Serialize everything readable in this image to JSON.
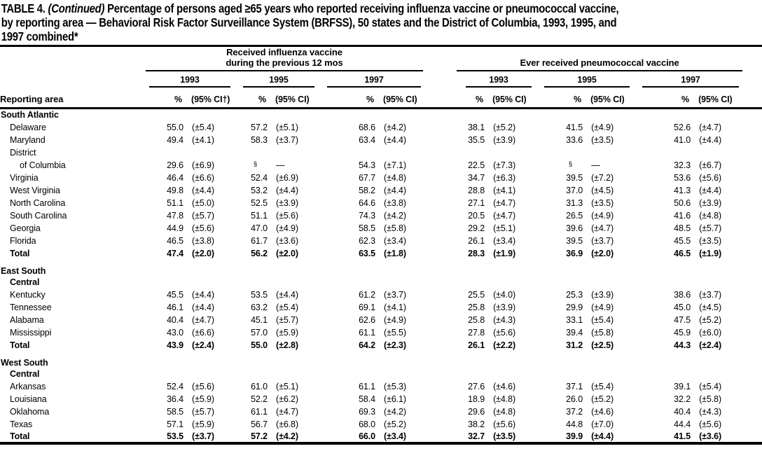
{
  "title": {
    "line1_prefix": "TABLE 4. ",
    "line1_continued": "(Continued)",
    "line1_rest": " Percentage of persons aged ≥65 years who reported receiving influenza vaccine or pneumococcal vaccine,",
    "line2": "by reporting area — Behavioral Risk Factor Surveillance System (BRFSS), 50 states and the District of Columbia, 1993, 1995, and",
    "line3": "1997 combined*"
  },
  "header": {
    "reporting_area": "Reporting area",
    "influenza_group": {
      "line1": "Received influenza vaccine",
      "line2": "during the previous 12 mos"
    },
    "pneumococcal_group": {
      "line1": "Ever received pneumococcal vaccine"
    },
    "years": [
      "1993",
      "1995",
      "1997",
      "1993",
      "1995",
      "1997"
    ],
    "col_headers": [
      "%",
      "(95% CI†)",
      "%",
      "(95% CI)",
      "%",
      "(95% CI)",
      "%",
      "(95% CI)",
      "%",
      "(95% CI)",
      "%",
      "(95% CI)"
    ]
  },
  "footnote_symbols": {
    "title_marker": "*",
    "ci_marker": "†",
    "missing_data_marker": "§",
    "missing_ci_dash": "—"
  },
  "colors": {
    "text": "#000000",
    "background": "#ffffff",
    "rule": "#000000"
  },
  "table": {
    "rows": [
      {
        "label": "South Atlantic",
        "indent": 0,
        "bold": true,
        "gap": false,
        "values": null
      },
      {
        "label": "Delaware",
        "indent": 1,
        "bold": false,
        "gap": false,
        "values": [
          "55.0",
          "(±5.4)",
          "57.2",
          "(±5.1)",
          "68.6",
          "(±4.2)",
          "38.1",
          "(±5.2)",
          "41.5",
          "(±4.9)",
          "52.6",
          "(±4.7)"
        ]
      },
      {
        "label": "Maryland",
        "indent": 1,
        "bold": false,
        "gap": false,
        "values": [
          "49.4",
          "(±4.1)",
          "58.3",
          "(±3.7)",
          "63.4",
          "(±4.4)",
          "35.5",
          "(±3.9)",
          "33.6",
          "(±3.5)",
          "41.0",
          "(±4.4)"
        ]
      },
      {
        "label": "District",
        "indent": 1,
        "bold": false,
        "gap": false,
        "values": null
      },
      {
        "label": "of Columbia",
        "indent": 2,
        "bold": false,
        "gap": false,
        "values": [
          "29.6",
          "(±6.9)",
          "§",
          "—",
          "54.3",
          "(±7.1)",
          "22.5",
          "(±7.3)",
          "§",
          "—",
          "32.3",
          "(±6.7)"
        ]
      },
      {
        "label": "Virginia",
        "indent": 1,
        "bold": false,
        "gap": false,
        "values": [
          "46.4",
          "(±6.6)",
          "52.4",
          "(±6.9)",
          "67.7",
          "(±4.8)",
          "34.7",
          "(±6.3)",
          "39.5",
          "(±7.2)",
          "53.6",
          "(±5.6)"
        ]
      },
      {
        "label": "West Virginia",
        "indent": 1,
        "bold": false,
        "gap": false,
        "values": [
          "49.8",
          "(±4.4)",
          "53.2",
          "(±4.4)",
          "58.2",
          "(±4.4)",
          "28.8",
          "(±4.1)",
          "37.0",
          "(±4.5)",
          "41.3",
          "(±4.4)"
        ]
      },
      {
        "label": "North Carolina",
        "indent": 1,
        "bold": false,
        "gap": false,
        "values": [
          "51.1",
          "(±5.0)",
          "52.5",
          "(±3.9)",
          "64.6",
          "(±3.8)",
          "27.1",
          "(±4.7)",
          "31.3",
          "(±3.5)",
          "50.6",
          "(±3.9)"
        ]
      },
      {
        "label": "South Carolina",
        "indent": 1,
        "bold": false,
        "gap": false,
        "values": [
          "47.8",
          "(±5.7)",
          "51.1",
          "(±5.6)",
          "74.3",
          "(±4.2)",
          "20.5",
          "(±4.7)",
          "26.5",
          "(±4.9)",
          "41.6",
          "(±4.8)"
        ]
      },
      {
        "label": "Georgia",
        "indent": 1,
        "bold": false,
        "gap": false,
        "values": [
          "44.9",
          "(±5.6)",
          "47.0",
          "(±4.9)",
          "58.5",
          "(±5.8)",
          "29.2",
          "(±5.1)",
          "39.6",
          "(±4.7)",
          "48.5",
          "(±5.7)"
        ]
      },
      {
        "label": "Florida",
        "indent": 1,
        "bold": false,
        "gap": false,
        "values": [
          "46.5",
          "(±3.8)",
          "61.7",
          "(±3.6)",
          "62.3",
          "(±3.4)",
          "26.1",
          "(±3.4)",
          "39.5",
          "(±3.7)",
          "45.5",
          "(±3.5)"
        ]
      },
      {
        "label": "Total",
        "indent": 1,
        "bold": true,
        "gap": false,
        "values": [
          "47.4",
          "(±2.0)",
          "56.2",
          "(±2.0)",
          "63.5",
          "(±1.8)",
          "28.3",
          "(±1.9)",
          "36.9",
          "(±2.0)",
          "46.5",
          "(±1.9)"
        ]
      },
      {
        "label": "East South",
        "indent": 0,
        "bold": true,
        "gap": true,
        "values": null
      },
      {
        "label": "Central",
        "indent": 1,
        "bold": true,
        "gap": false,
        "values": null
      },
      {
        "label": "Kentucky",
        "indent": 1,
        "bold": false,
        "gap": false,
        "values": [
          "45.5",
          "(±4.4)",
          "53.5",
          "(±4.4)",
          "61.2",
          "(±3.7)",
          "25.5",
          "(±4.0)",
          "25.3",
          "(±3.9)",
          "38.6",
          "(±3.7)"
        ]
      },
      {
        "label": "Tennessee",
        "indent": 1,
        "bold": false,
        "gap": false,
        "values": [
          "46.1",
          "(±4.4)",
          "63.2",
          "(±5.4)",
          "69.1",
          "(±4.1)",
          "25.8",
          "(±3.9)",
          "29.9",
          "(±4.9)",
          "45.0",
          "(±4.5)"
        ]
      },
      {
        "label": "Alabama",
        "indent": 1,
        "bold": false,
        "gap": false,
        "values": [
          "40.4",
          "(±4.7)",
          "45.1",
          "(±5.7)",
          "62.6",
          "(±4.9)",
          "25.8",
          "(±4.3)",
          "33.1",
          "(±5.4)",
          "47.5",
          "(±5.2)"
        ]
      },
      {
        "label": "Mississippi",
        "indent": 1,
        "bold": false,
        "gap": false,
        "values": [
          "43.0",
          "(±6.6)",
          "57.0",
          "(±5.9)",
          "61.1",
          "(±5.5)",
          "27.8",
          "(±5.6)",
          "39.4",
          "(±5.8)",
          "45.9",
          "(±6.0)"
        ]
      },
      {
        "label": "Total",
        "indent": 1,
        "bold": true,
        "gap": false,
        "values": [
          "43.9",
          "(±2.4)",
          "55.0",
          "(±2.8)",
          "64.2",
          "(±2.3)",
          "26.1",
          "(±2.2)",
          "31.2",
          "(±2.5)",
          "44.3",
          "(±2.4)"
        ]
      },
      {
        "label": "West South",
        "indent": 0,
        "bold": true,
        "gap": true,
        "values": null
      },
      {
        "label": "Central",
        "indent": 1,
        "bold": true,
        "gap": false,
        "values": null
      },
      {
        "label": "Arkansas",
        "indent": 1,
        "bold": false,
        "gap": false,
        "values": [
          "52.4",
          "(±5.6)",
          "61.0",
          "(±5.1)",
          "61.1",
          "(±5.3)",
          "27.6",
          "(±4.6)",
          "37.1",
          "(±5.4)",
          "39.1",
          "(±5.4)"
        ]
      },
      {
        "label": "Louisiana",
        "indent": 1,
        "bold": false,
        "gap": false,
        "values": [
          "36.4",
          "(±5.9)",
          "52.2",
          "(±6.2)",
          "58.4",
          "(±6.1)",
          "18.9",
          "(±4.8)",
          "26.0",
          "(±5.2)",
          "32.2",
          "(±5.8)"
        ]
      },
      {
        "label": "Oklahoma",
        "indent": 1,
        "bold": false,
        "gap": false,
        "values": [
          "58.5",
          "(±5.7)",
          "61.1",
          "(±4.7)",
          "69.3",
          "(±4.2)",
          "29.6",
          "(±4.8)",
          "37.2",
          "(±4.6)",
          "40.4",
          "(±4.3)"
        ]
      },
      {
        "label": "Texas",
        "indent": 1,
        "bold": false,
        "gap": false,
        "values": [
          "57.1",
          "(±5.9)",
          "56.7",
          "(±6.8)",
          "68.0",
          "(±5.2)",
          "38.2",
          "(±5.6)",
          "44.8",
          "(±7.0)",
          "44.4",
          "(±5.6)"
        ]
      },
      {
        "label": "Total",
        "indent": 1,
        "bold": true,
        "gap": false,
        "values": [
          "53.5",
          "(±3.7)",
          "57.2",
          "(±4.2)",
          "66.0",
          "(±3.4)",
          "32.7",
          "(±3.5)",
          "39.9",
          "(±4.4)",
          "41.5",
          "(±3.6)"
        ]
      }
    ]
  }
}
